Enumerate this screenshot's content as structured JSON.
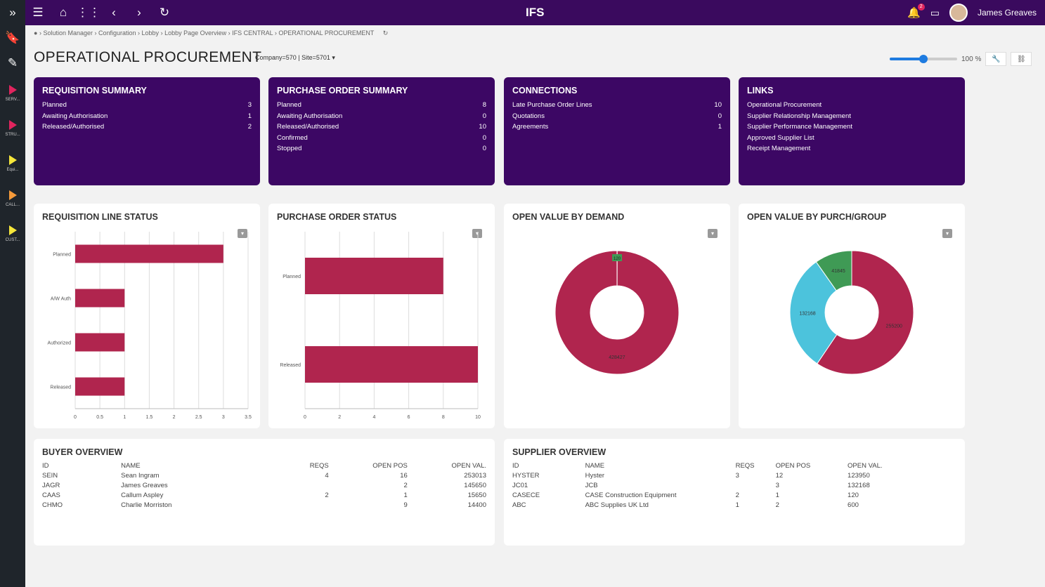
{
  "topbar": {
    "logo": "IFS",
    "user": "James Greaves",
    "notification_count": "2",
    "icons": [
      "menu-icon",
      "home-icon",
      "apps-grid-icon",
      "back-icon",
      "forward-icon",
      "refresh-icon"
    ]
  },
  "sidebar": {
    "items": [
      {
        "label": "SERV...",
        "color": "#e0245e"
      },
      {
        "label": "STRU...",
        "color": "#e0245e"
      },
      {
        "label": "Equi...",
        "color": "#f5e63a"
      },
      {
        "label": "CALL...",
        "color": "#f59a3a"
      },
      {
        "label": "CUST...",
        "color": "#f5e63a"
      }
    ]
  },
  "breadcrumb": [
    "Solution Manager",
    "Configuration",
    "Lobby",
    "Lobby Page Overview",
    "IFS CENTRAL",
    "OPERATIONAL PROCUREMENT"
  ],
  "page": {
    "title": "OPERATIONAL PROCUREMENT",
    "context": "Company=570 | Site=5701",
    "zoom_label": "100 %",
    "zoom_percent": 100
  },
  "colors": {
    "brand": "#3c0764",
    "bar": "#b0254e",
    "cyan": "#4cc3dc",
    "green": "#3f9a55"
  },
  "tiles": [
    {
      "title": "REQUISITION SUMMARY",
      "rows": [
        [
          "Planned",
          "3"
        ],
        [
          "Awaiting Authorisation",
          "1"
        ],
        [
          "Released/Authorised",
          "2"
        ]
      ]
    },
    {
      "title": "PURCHASE ORDER SUMMARY",
      "rows": [
        [
          "Planned",
          "8"
        ],
        [
          "Awaiting Authorisation",
          "0"
        ],
        [
          "Released/Authorised",
          "10"
        ],
        [
          "Confirmed",
          "0"
        ],
        [
          "Stopped",
          "0"
        ]
      ]
    },
    {
      "title": "CONNECTIONS",
      "rows": [
        [
          "Late Purchase Order Lines",
          "10"
        ],
        [
          "Quotations",
          "0"
        ],
        [
          "Agreements",
          "1"
        ]
      ]
    },
    {
      "title": "LINKS",
      "rows": [
        [
          "Operational Procurement",
          ""
        ],
        [
          "Supplier Relationship Management",
          ""
        ],
        [
          "Supplier Performance Management",
          ""
        ],
        [
          "Approved Supplier List",
          ""
        ],
        [
          "Receipt Management",
          ""
        ]
      ]
    }
  ],
  "chart_data": [
    {
      "type": "bar",
      "orientation": "horizontal",
      "title": "REQUISITION LINE STATUS",
      "categories": [
        "Planned",
        "A/W Auth",
        "Authorized",
        "Released"
      ],
      "values": [
        3,
        1,
        1,
        1
      ],
      "xlim": [
        0,
        3.5
      ],
      "ticks": [
        "0",
        "0.5",
        "1",
        "1.5",
        "2",
        "2.5",
        "3",
        "3.5"
      ],
      "grid": true
    },
    {
      "type": "bar",
      "orientation": "horizontal",
      "title": "PURCHASE ORDER STATUS",
      "categories": [
        "Planned",
        "Released"
      ],
      "values": [
        8,
        10
      ],
      "xlim": [
        0,
        10
      ],
      "ticks": [
        "0",
        "2",
        "4",
        "6",
        "8",
        "10"
      ],
      "grid": true
    },
    {
      "type": "pie",
      "donut": true,
      "title": "OPEN VALUE BY DEMAND",
      "slices": [
        {
          "label": "120",
          "value": 120,
          "color": "#3f9a55"
        },
        {
          "label": "428427",
          "value": 428427,
          "color": "#b0254e"
        }
      ]
    },
    {
      "type": "pie",
      "donut": true,
      "title": "OPEN VALUE BY PURCH/GROUP",
      "slices": [
        {
          "label": "255200",
          "value": 255200,
          "color": "#b0254e"
        },
        {
          "label": "132168",
          "value": 132168,
          "color": "#4cc3dc"
        },
        {
          "label": "41845",
          "value": 41845,
          "color": "#3f9a55"
        }
      ]
    }
  ],
  "buyer": {
    "title": "BUYER OVERVIEW",
    "headers": [
      "ID",
      "NAME",
      "REQS",
      "OPEN POS",
      "OPEN VAL."
    ],
    "rows": [
      [
        "SEIN",
        "Sean Ingram",
        "4",
        "16",
        "253013"
      ],
      [
        "JAGR",
        "James Greaves",
        "",
        "2",
        "145650"
      ],
      [
        "CAAS",
        "Callum Aspley",
        "2",
        "1",
        "15650"
      ],
      [
        "CHMO",
        "Charlie Morriston",
        "",
        "9",
        "14400"
      ]
    ]
  },
  "supplier": {
    "title": "SUPPLIER OVERVIEW",
    "headers": [
      "ID",
      "NAME",
      "REQS",
      "OPEN POS",
      "OPEN VAL."
    ],
    "rows": [
      [
        "HYSTER",
        "Hyster",
        "3",
        "12",
        "123950"
      ],
      [
        "JC01",
        "JCB",
        "",
        "3",
        "132168"
      ],
      [
        "CASECE",
        "CASE Construction Equipment",
        "2",
        "1",
        "120"
      ],
      [
        "ABC",
        "ABC Supplies UK Ltd",
        "1",
        "2",
        "600"
      ]
    ]
  }
}
